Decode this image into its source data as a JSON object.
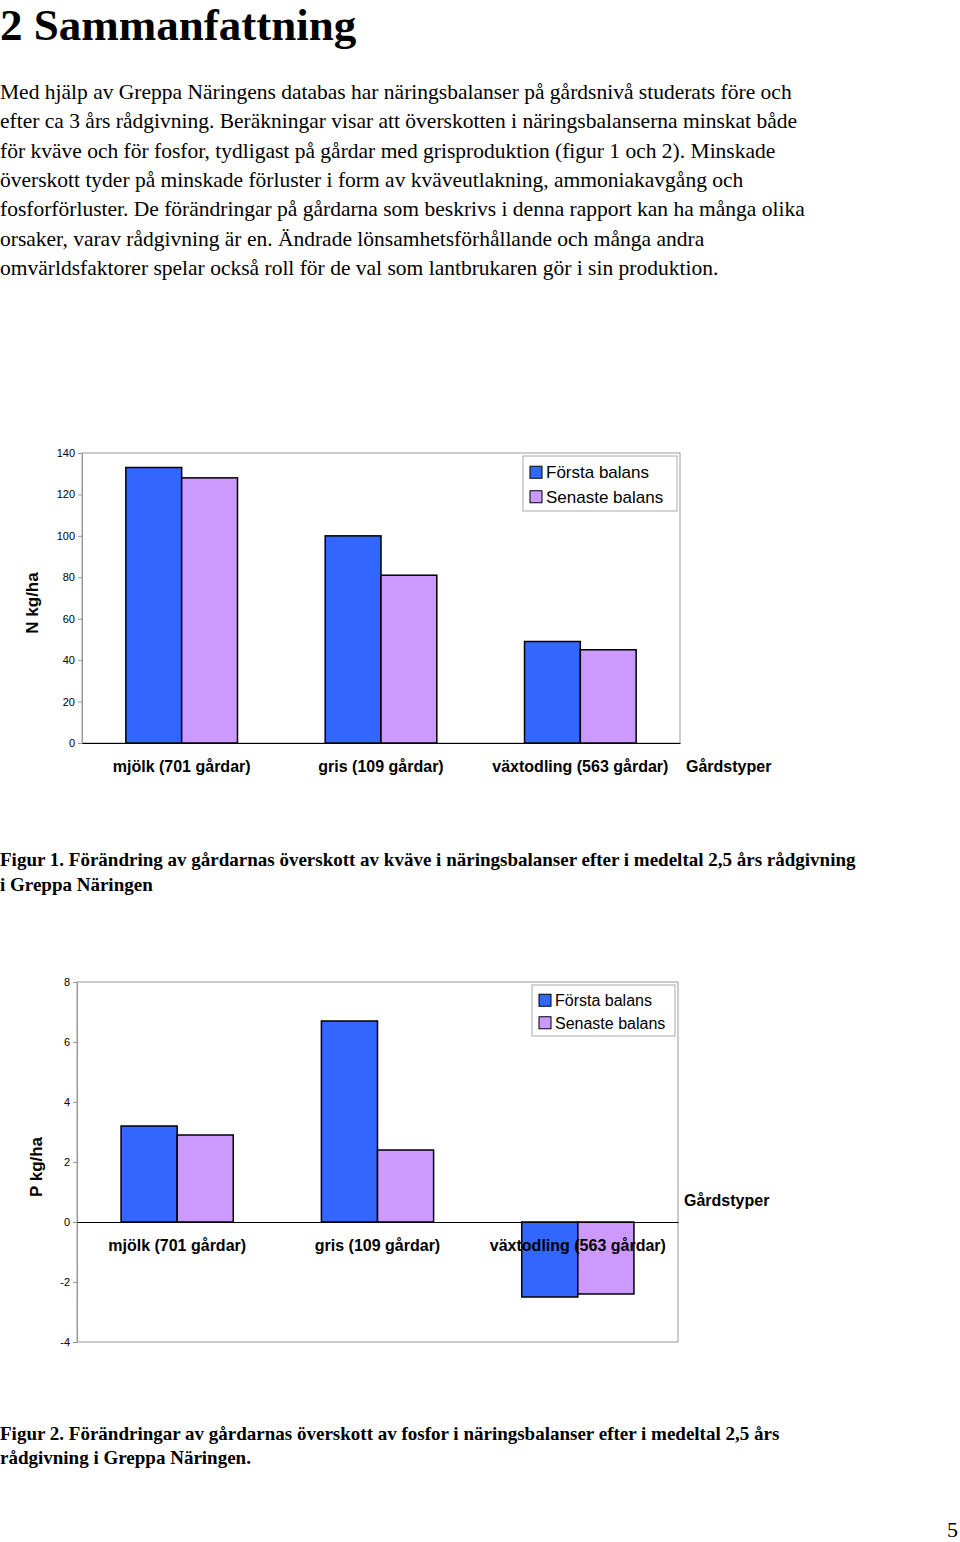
{
  "document": {
    "heading": "2 Sammanfattning",
    "paragraph": [
      "Med hjälp av Greppa Näringens databas har näringsbalanser på gårdsnivå studerats före och",
      "efter ca 3 års rådgivning. Beräkningar visar att överskotten i näringsbalanserna minskat både",
      "för kväve och för fosfor, tydligast på gårdar med grisproduktion (figur 1 och 2). Minskade",
      "överskott tyder på minskade förluster i form av kväveutlakning, ammoniakavgång och",
      "fosforförluster. De förändringar på gårdarna som beskrivs i denna rapport kan ha många olika",
      "orsaker, varav rådgivning är en. Ändrade lönsamhetsförhållande och många andra",
      "omvärldsfaktorer spelar också roll för de val som lantbrukaren gör i sin produktion."
    ],
    "captions": [
      [
        "Figur 1. Förändring av gårdarnas överskott av kväve i näringsbalanser efter i medeltal 2,5 års rådgivning",
        "i Greppa Näringen"
      ],
      [
        "Figur 2. Förändringar av gårdarnas överskott av fosfor i näringsbalanser efter i medeltal 2,5 års",
        "rådgivning i Greppa Näringen."
      ]
    ],
    "page_number": "5"
  },
  "chart_data": [
    {
      "type": "bar",
      "categories": [
        "mjölk (701 gårdar)",
        "gris (109 gårdar)",
        "växtodling (563 gårdar)"
      ],
      "series": [
        {
          "name": "Första balans",
          "color": "#3366ff",
          "values": [
            133,
            100,
            49
          ]
        },
        {
          "name": "Senaste balans",
          "color": "#cc99ff",
          "values": [
            128,
            81,
            45
          ]
        }
      ],
      "x_label": "Gårdstyper",
      "y_label": "N kg/ha",
      "ylim": [
        0,
        140
      ],
      "yticks": [
        0,
        20,
        40,
        60,
        80,
        100,
        120,
        140
      ],
      "grid": false,
      "legend": "top-right"
    },
    {
      "type": "bar",
      "categories": [
        "mjölk (701 gårdar)",
        "gris (109 gårdar)",
        "växtodling (563 gårdar)"
      ],
      "series": [
        {
          "name": "Första balans",
          "color": "#3366ff",
          "values": [
            3.2,
            6.7,
            -2.5
          ]
        },
        {
          "name": "Senaste balans",
          "color": "#cc99ff",
          "values": [
            2.9,
            2.4,
            -2.4
          ]
        }
      ],
      "x_label": "Gårdstyper",
      "y_label": "P kg/ha",
      "ylim": [
        -4,
        8
      ],
      "yticks": [
        -4,
        -2,
        0,
        2,
        4,
        6,
        8
      ],
      "grid": false,
      "legend": "top-right"
    }
  ]
}
